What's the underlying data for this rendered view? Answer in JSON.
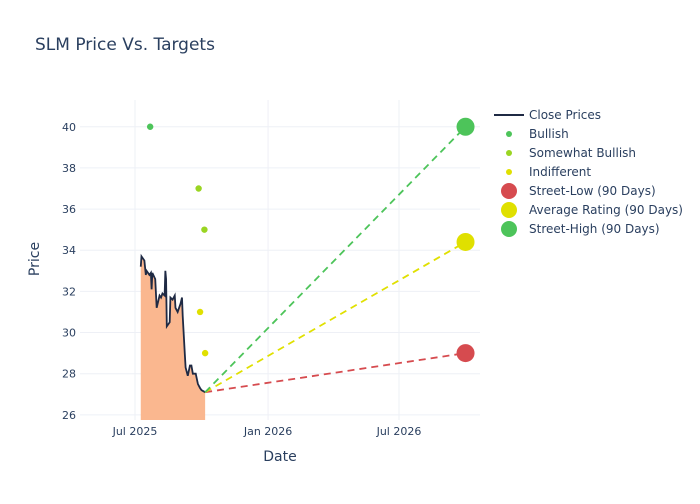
{
  "chart_data": {
    "type": "line",
    "title": "SLM Price Vs. Targets",
    "xlabel": "Date",
    "ylabel": "Price",
    "xlim": [
      "2025-04-16",
      "2026-10-21"
    ],
    "ylim": [
      25.75,
      41.3
    ],
    "x_ticks": [
      {
        "date": "2025-07-01",
        "label": "Jul 2025"
      },
      {
        "date": "2026-01-01",
        "label": "Jan 2026"
      },
      {
        "date": "2026-07-01",
        "label": "Jul 2026"
      }
    ],
    "y_ticks": [
      26,
      28,
      30,
      32,
      34,
      36,
      38,
      40
    ],
    "grid": true,
    "legend_position": "right",
    "colors": {
      "close": "#1f2a44",
      "fill": "#fab78f",
      "bullish": "#4dc45a",
      "somewhat_bullish": "#9ad522",
      "indifferent": "#e0e000",
      "street_low": "#d64b4f",
      "average": "#e0e000",
      "street_high": "#4dc45a"
    },
    "close_prices": {
      "name": "Close Prices",
      "x": [
        "2025-07-09",
        "2025-07-10",
        "2025-07-14",
        "2025-07-16",
        "2025-07-17",
        "2025-07-21",
        "2025-07-23",
        "2025-07-24",
        "2025-07-25",
        "2025-07-29",
        "2025-07-31",
        "2025-08-04",
        "2025-08-06",
        "2025-08-08",
        "2025-08-11",
        "2025-08-12",
        "2025-08-13",
        "2025-08-14",
        "2025-08-18",
        "2025-08-19",
        "2025-08-22",
        "2025-08-25",
        "2025-08-26",
        "2025-08-29",
        "2025-09-02",
        "2025-09-04",
        "2025-09-05",
        "2025-09-08",
        "2025-09-09",
        "2025-09-12",
        "2025-09-15",
        "2025-09-17",
        "2025-09-19",
        "2025-09-23",
        "2025-09-26",
        "2025-09-29",
        "2025-10-01",
        "2025-10-06"
      ],
      "y": [
        33.2,
        33.7,
        33.5,
        32.8,
        33.0,
        32.8,
        32.9,
        32.1,
        32.9,
        32.6,
        31.2,
        31.8,
        31.7,
        31.9,
        31.8,
        33.0,
        32.6,
        30.3,
        30.5,
        31.7,
        31.6,
        31.8,
        31.2,
        31.0,
        31.4,
        31.7,
        30.8,
        28.9,
        28.3,
        27.9,
        28.4,
        28.4,
        28.0,
        28.0,
        27.5,
        27.3,
        27.2,
        27.1
      ]
    },
    "ratings": [
      {
        "name": "Bullish",
        "points": [
          {
            "x": "2025-07-22",
            "y": 40
          }
        ]
      },
      {
        "name": "Somewhat Bullish",
        "points": [
          {
            "x": "2025-09-27",
            "y": 37
          },
          {
            "x": "2025-10-05",
            "y": 35
          }
        ]
      },
      {
        "name": "Indifferent",
        "points": [
          {
            "x": "2025-09-29",
            "y": 31
          },
          {
            "x": "2025-10-06",
            "y": 29
          }
        ]
      }
    ],
    "targets": [
      {
        "name": "Street-Low (90 Days)",
        "key": "street_low",
        "from": {
          "x": "2025-10-06",
          "y": 27.1
        },
        "to": {
          "x": "2026-10-01",
          "y": 29.0
        }
      },
      {
        "name": "Average Rating (90 Days)",
        "key": "average",
        "from": {
          "x": "2025-10-06",
          "y": 27.1
        },
        "to": {
          "x": "2026-10-01",
          "y": 34.4
        }
      },
      {
        "name": "Street-High (90 Days)",
        "key": "street_high",
        "from": {
          "x": "2025-10-06",
          "y": 27.1
        },
        "to": {
          "x": "2026-10-01",
          "y": 40.0
        }
      }
    ]
  }
}
